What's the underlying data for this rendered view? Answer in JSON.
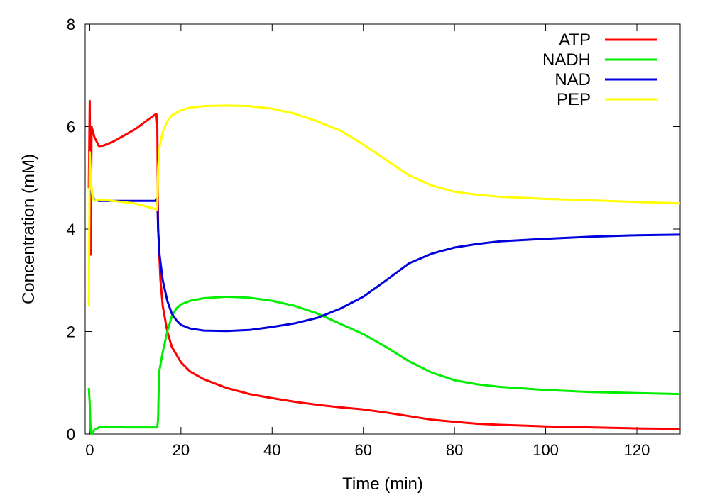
{
  "chart_data": {
    "type": "line",
    "title": "",
    "xlabel": "Time (min)",
    "ylabel": "Concentration (mM)",
    "xlim": [
      -1,
      129.5
    ],
    "ylim": [
      0,
      8
    ],
    "x_ticks": [
      0,
      20,
      40,
      60,
      80,
      100,
      120
    ],
    "y_ticks": [
      0,
      2,
      4,
      6,
      8
    ],
    "x_tick_labels": [
      "0",
      "20",
      "40",
      "60",
      "80",
      "100",
      "120"
    ],
    "y_tick_labels": [
      "0",
      "2",
      "4",
      "6",
      "8"
    ],
    "grid": false,
    "legend_position": "top-right",
    "series": [
      {
        "name": "ATP",
        "color": "#ff0000",
        "points": [
          [
            -0.2,
            4.8
          ],
          [
            0,
            6.5
          ],
          [
            0.2,
            3.5
          ],
          [
            0.4,
            6.0
          ],
          [
            1,
            5.8
          ],
          [
            2,
            5.62
          ],
          [
            3,
            5.63
          ],
          [
            5,
            5.7
          ],
          [
            8,
            5.85
          ],
          [
            10,
            5.95
          ],
          [
            13,
            6.15
          ],
          [
            14.6,
            6.25
          ],
          [
            14.8,
            6.05
          ],
          [
            15,
            4.0
          ],
          [
            15.5,
            3.0
          ],
          [
            16,
            2.5
          ],
          [
            17,
            2.0
          ],
          [
            18,
            1.7
          ],
          [
            20,
            1.4
          ],
          [
            22,
            1.22
          ],
          [
            25,
            1.07
          ],
          [
            30,
            0.9
          ],
          [
            35,
            0.78
          ],
          [
            40,
            0.7
          ],
          [
            45,
            0.63
          ],
          [
            50,
            0.57
          ],
          [
            55,
            0.52
          ],
          [
            60,
            0.48
          ],
          [
            65,
            0.42
          ],
          [
            70,
            0.35
          ],
          [
            75,
            0.28
          ],
          [
            80,
            0.24
          ],
          [
            85,
            0.2
          ],
          [
            90,
            0.18
          ],
          [
            100,
            0.15
          ],
          [
            110,
            0.13
          ],
          [
            120,
            0.11
          ],
          [
            129.5,
            0.1
          ]
        ]
      },
      {
        "name": "NADH",
        "color": "#00ee00",
        "points": [
          [
            -0.2,
            0.9
          ],
          [
            0,
            0.6
          ],
          [
            0.2,
            0.05
          ],
          [
            0.5,
            0.0
          ],
          [
            1,
            0.08
          ],
          [
            2,
            0.13
          ],
          [
            3,
            0.14
          ],
          [
            5,
            0.14
          ],
          [
            8,
            0.13
          ],
          [
            12,
            0.13
          ],
          [
            14.8,
            0.13
          ],
          [
            15,
            0.3
          ],
          [
            15.2,
            1.2
          ],
          [
            16,
            1.6
          ],
          [
            17,
            2.0
          ],
          [
            18,
            2.3
          ],
          [
            19,
            2.45
          ],
          [
            20,
            2.53
          ],
          [
            22,
            2.6
          ],
          [
            25,
            2.65
          ],
          [
            30,
            2.68
          ],
          [
            35,
            2.66
          ],
          [
            40,
            2.6
          ],
          [
            45,
            2.5
          ],
          [
            50,
            2.35
          ],
          [
            55,
            2.15
          ],
          [
            60,
            1.95
          ],
          [
            65,
            1.7
          ],
          [
            70,
            1.42
          ],
          [
            75,
            1.2
          ],
          [
            80,
            1.05
          ],
          [
            85,
            0.97
          ],
          [
            90,
            0.92
          ],
          [
            100,
            0.86
          ],
          [
            110,
            0.82
          ],
          [
            120,
            0.8
          ],
          [
            129.5,
            0.78
          ]
        ]
      },
      {
        "name": "NAD",
        "color": "#0000dd",
        "points": [
          [
            0,
            4.75
          ],
          [
            0.5,
            4.65
          ],
          [
            1,
            4.58
          ],
          [
            2,
            4.55
          ],
          [
            3,
            4.55
          ],
          [
            5,
            4.55
          ],
          [
            10,
            4.55
          ],
          [
            14.5,
            4.55
          ],
          [
            14.8,
            4.6
          ],
          [
            15,
            4.0
          ],
          [
            15.3,
            3.5
          ],
          [
            16,
            3.0
          ],
          [
            17,
            2.6
          ],
          [
            18,
            2.35
          ],
          [
            19,
            2.22
          ],
          [
            20,
            2.13
          ],
          [
            22,
            2.06
          ],
          [
            25,
            2.02
          ],
          [
            30,
            2.01
          ],
          [
            35,
            2.03
          ],
          [
            40,
            2.09
          ],
          [
            45,
            2.16
          ],
          [
            50,
            2.27
          ],
          [
            55,
            2.45
          ],
          [
            60,
            2.68
          ],
          [
            65,
            3.0
          ],
          [
            70,
            3.33
          ],
          [
            75,
            3.52
          ],
          [
            80,
            3.64
          ],
          [
            85,
            3.71
          ],
          [
            90,
            3.76
          ],
          [
            100,
            3.81
          ],
          [
            110,
            3.85
          ],
          [
            120,
            3.88
          ],
          [
            129.5,
            3.89
          ]
        ]
      },
      {
        "name": "PEP",
        "color": "#ffff00",
        "points": [
          [
            -0.2,
            2.5
          ],
          [
            0,
            5.5
          ],
          [
            0.3,
            4.9
          ],
          [
            0.6,
            4.62
          ],
          [
            1,
            4.55
          ],
          [
            2,
            4.58
          ],
          [
            5,
            4.55
          ],
          [
            8,
            4.52
          ],
          [
            10,
            4.5
          ],
          [
            12,
            4.45
          ],
          [
            14,
            4.4
          ],
          [
            14.8,
            4.38
          ],
          [
            15,
            5.2
          ],
          [
            15.3,
            5.6
          ],
          [
            16,
            5.9
          ],
          [
            17,
            6.1
          ],
          [
            18,
            6.22
          ],
          [
            20,
            6.32
          ],
          [
            22,
            6.37
          ],
          [
            25,
            6.4
          ],
          [
            30,
            6.41
          ],
          [
            35,
            6.4
          ],
          [
            40,
            6.35
          ],
          [
            45,
            6.25
          ],
          [
            50,
            6.1
          ],
          [
            55,
            5.92
          ],
          [
            60,
            5.65
          ],
          [
            65,
            5.35
          ],
          [
            70,
            5.05
          ],
          [
            75,
            4.85
          ],
          [
            80,
            4.73
          ],
          [
            85,
            4.67
          ],
          [
            90,
            4.63
          ],
          [
            100,
            4.59
          ],
          [
            110,
            4.56
          ],
          [
            120,
            4.53
          ],
          [
            129.5,
            4.5
          ]
        ]
      }
    ]
  }
}
